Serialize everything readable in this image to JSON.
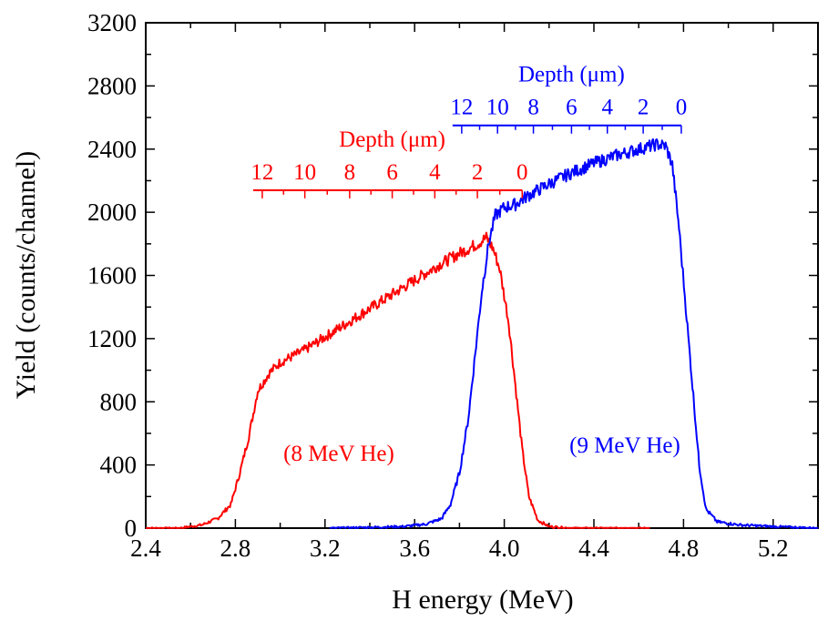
{
  "chart_data": {
    "type": "line",
    "xlabel": "H energy (MeV)",
    "ylabel": "Yield (counts/channel)",
    "xlim": [
      2.4,
      5.4
    ],
    "ylim": [
      0,
      3200
    ],
    "xticks": [
      2.4,
      2.8,
      3.2,
      3.6,
      4.0,
      4.4,
      4.8,
      5.2
    ],
    "xtick_labels": [
      "2.4",
      "2.8",
      "3.2",
      "3.6",
      "4.0",
      "4.4",
      "4.8",
      "5.2"
    ],
    "yticks": [
      0,
      400,
      800,
      1200,
      1600,
      2000,
      2400,
      2800,
      3200
    ],
    "ytick_labels": [
      "0",
      "400",
      "800",
      "1200",
      "1600",
      "2000",
      "2400",
      "2800",
      "3200"
    ],
    "grid": false,
    "series": [
      {
        "name": "(8 MeV He)",
        "color": "#ff0000",
        "points": [
          [
            2.4,
            0
          ],
          [
            2.55,
            0
          ],
          [
            2.65,
            20
          ],
          [
            2.72,
            60
          ],
          [
            2.78,
            150
          ],
          [
            2.82,
            350
          ],
          [
            2.86,
            580
          ],
          [
            2.9,
            870
          ],
          [
            2.95,
            980
          ],
          [
            3.0,
            1050
          ],
          [
            3.1,
            1120
          ],
          [
            3.2,
            1210
          ],
          [
            3.3,
            1300
          ],
          [
            3.4,
            1390
          ],
          [
            3.5,
            1480
          ],
          [
            3.6,
            1570
          ],
          [
            3.7,
            1660
          ],
          [
            3.8,
            1740
          ],
          [
            3.88,
            1800
          ],
          [
            3.92,
            1840
          ],
          [
            3.95,
            1770
          ],
          [
            3.98,
            1640
          ],
          [
            4.02,
            1300
          ],
          [
            4.05,
            900
          ],
          [
            4.08,
            500
          ],
          [
            4.11,
            200
          ],
          [
            4.15,
            50
          ],
          [
            4.2,
            10
          ],
          [
            4.3,
            0
          ],
          [
            4.5,
            0
          ],
          [
            4.65,
            0
          ]
        ],
        "depth_scale": {
          "title": "Depth (μm)",
          "labels": [
            "12",
            "10",
            "8",
            "6",
            "4",
            "2",
            "0"
          ],
          "values_um": [
            12,
            10,
            8,
            6,
            4,
            2,
            0
          ],
          "energy_MeV": [
            2.92,
            3.11,
            3.31,
            3.5,
            3.69,
            3.88,
            4.08
          ],
          "y_level": 2140
        }
      },
      {
        "name": "(9 MeV He)",
        "color": "#0000ff",
        "points": [
          [
            3.22,
            0
          ],
          [
            3.4,
            5
          ],
          [
            3.55,
            10
          ],
          [
            3.65,
            25
          ],
          [
            3.72,
            60
          ],
          [
            3.76,
            150
          ],
          [
            3.8,
            350
          ],
          [
            3.84,
            700
          ],
          [
            3.87,
            1100
          ],
          [
            3.9,
            1500
          ],
          [
            3.93,
            1800
          ],
          [
            3.96,
            1980
          ],
          [
            4.0,
            2030
          ],
          [
            4.05,
            2050
          ],
          [
            4.1,
            2100
          ],
          [
            4.2,
            2180
          ],
          [
            4.3,
            2250
          ],
          [
            4.4,
            2310
          ],
          [
            4.5,
            2360
          ],
          [
            4.6,
            2400
          ],
          [
            4.68,
            2430
          ],
          [
            4.72,
            2420
          ],
          [
            4.75,
            2300
          ],
          [
            4.78,
            1900
          ],
          [
            4.81,
            1400
          ],
          [
            4.84,
            900
          ],
          [
            4.87,
            400
          ],
          [
            4.9,
            120
          ],
          [
            4.95,
            40
          ],
          [
            5.05,
            20
          ],
          [
            5.2,
            10
          ],
          [
            5.3,
            5
          ],
          [
            5.4,
            0
          ]
        ],
        "depth_scale": {
          "title": "Depth (μm)",
          "labels": [
            "12",
            "10",
            "8",
            "6",
            "4",
            "2",
            "0"
          ],
          "values_um": [
            12,
            10,
            8,
            6,
            4,
            2,
            0
          ],
          "energy_MeV": [
            3.81,
            3.97,
            4.13,
            4.3,
            4.46,
            4.62,
            4.79
          ],
          "y_level": 2550
        }
      }
    ]
  }
}
